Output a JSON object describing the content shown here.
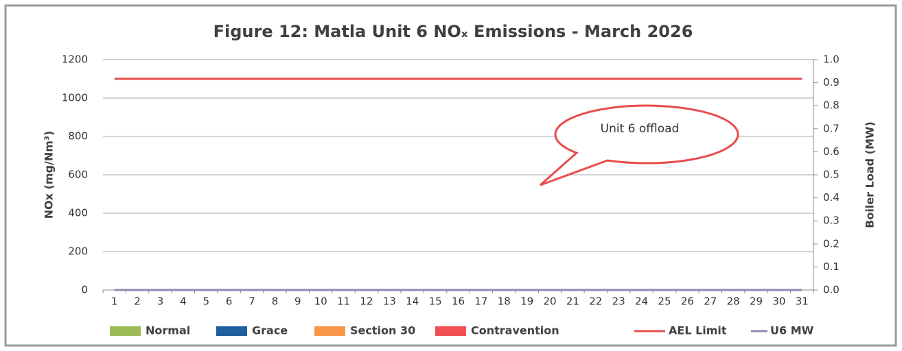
{
  "chart_data": {
    "type": "bar",
    "title": "Figure 12: Matla Unit 6 NOₓ Emissions - March 2026",
    "y_label": "NOx (mg/Nm³)",
    "y2_label": "Boiler Load (MW)",
    "annotation": "Unit 6 offload",
    "categories": [
      "1",
      "2",
      "3",
      "4",
      "5",
      "6",
      "7",
      "8",
      "9",
      "10",
      "11",
      "12",
      "13",
      "14",
      "15",
      "16",
      "17",
      "18",
      "19",
      "20",
      "21",
      "22",
      "23",
      "24",
      "25",
      "26",
      "27",
      "28",
      "29",
      "30",
      "31"
    ],
    "ylim": [
      0,
      1200
    ],
    "yticks": [
      0,
      200,
      400,
      600,
      800,
      1000,
      1200
    ],
    "y2lim": [
      0,
      1
    ],
    "y2ticks": [
      {
        "value": 0,
        "label": "0.0"
      },
      0.1,
      0.2,
      0.3,
      0.4,
      0.5,
      0.6,
      0.7,
      0.8,
      0.9,
      {
        "value": 1,
        "label": "1.0"
      }
    ],
    "grid": true,
    "legend": "bottom",
    "series": [
      {
        "name": "Normal",
        "type": "bar",
        "color": "#9bbb59",
        "values": [
          0,
          0,
          0,
          0,
          0,
          0,
          0,
          0,
          0,
          0,
          0,
          0,
          0,
          0,
          0,
          0,
          0,
          0,
          0,
          0,
          0,
          0,
          0,
          0,
          0,
          0,
          0,
          0,
          0,
          0,
          0
        ]
      },
      {
        "name": "Grace",
        "type": "bar",
        "color": "#1f5fa0",
        "values": [
          0,
          0,
          0,
          0,
          0,
          0,
          0,
          0,
          0,
          0,
          0,
          0,
          0,
          0,
          0,
          0,
          0,
          0,
          0,
          0,
          0,
          0,
          0,
          0,
          0,
          0,
          0,
          0,
          0,
          0,
          0
        ]
      },
      {
        "name": "Section 30",
        "type": "bar",
        "color": "#f79646",
        "values": [
          0,
          0,
          0,
          0,
          0,
          0,
          0,
          0,
          0,
          0,
          0,
          0,
          0,
          0,
          0,
          0,
          0,
          0,
          0,
          0,
          0,
          0,
          0,
          0,
          0,
          0,
          0,
          0,
          0,
          0,
          0
        ]
      },
      {
        "name": "Contravention",
        "type": "bar",
        "color": "#f0504f",
        "values": [
          0,
          0,
          0,
          0,
          0,
          0,
          0,
          0,
          0,
          0,
          0,
          0,
          0,
          0,
          0,
          0,
          0,
          0,
          0,
          0,
          0,
          0,
          0,
          0,
          0,
          0,
          0,
          0,
          0,
          0,
          0
        ]
      },
      {
        "name": "AEL Limit",
        "type": "line",
        "color": "#e84c4c",
        "values": [
          1100,
          1100,
          1100,
          1100,
          1100,
          1100,
          1100,
          1100,
          1100,
          1100,
          1100,
          1100,
          1100,
          1100,
          1100,
          1100,
          1100,
          1100,
          1100,
          1100,
          1100,
          1100,
          1100,
          1100,
          1100,
          1100,
          1100,
          1100,
          1100,
          1100,
          1100
        ]
      },
      {
        "name": "U6 MW",
        "type": "line",
        "axis": "y2",
        "color": "#8c8cb4",
        "values": [
          0,
          0,
          0,
          0,
          0,
          0,
          0,
          0,
          0,
          0,
          0,
          0,
          0,
          0,
          0,
          0,
          0,
          0,
          0,
          0,
          0,
          0,
          0,
          0,
          0,
          0,
          0,
          0,
          0,
          0,
          0
        ]
      }
    ]
  }
}
